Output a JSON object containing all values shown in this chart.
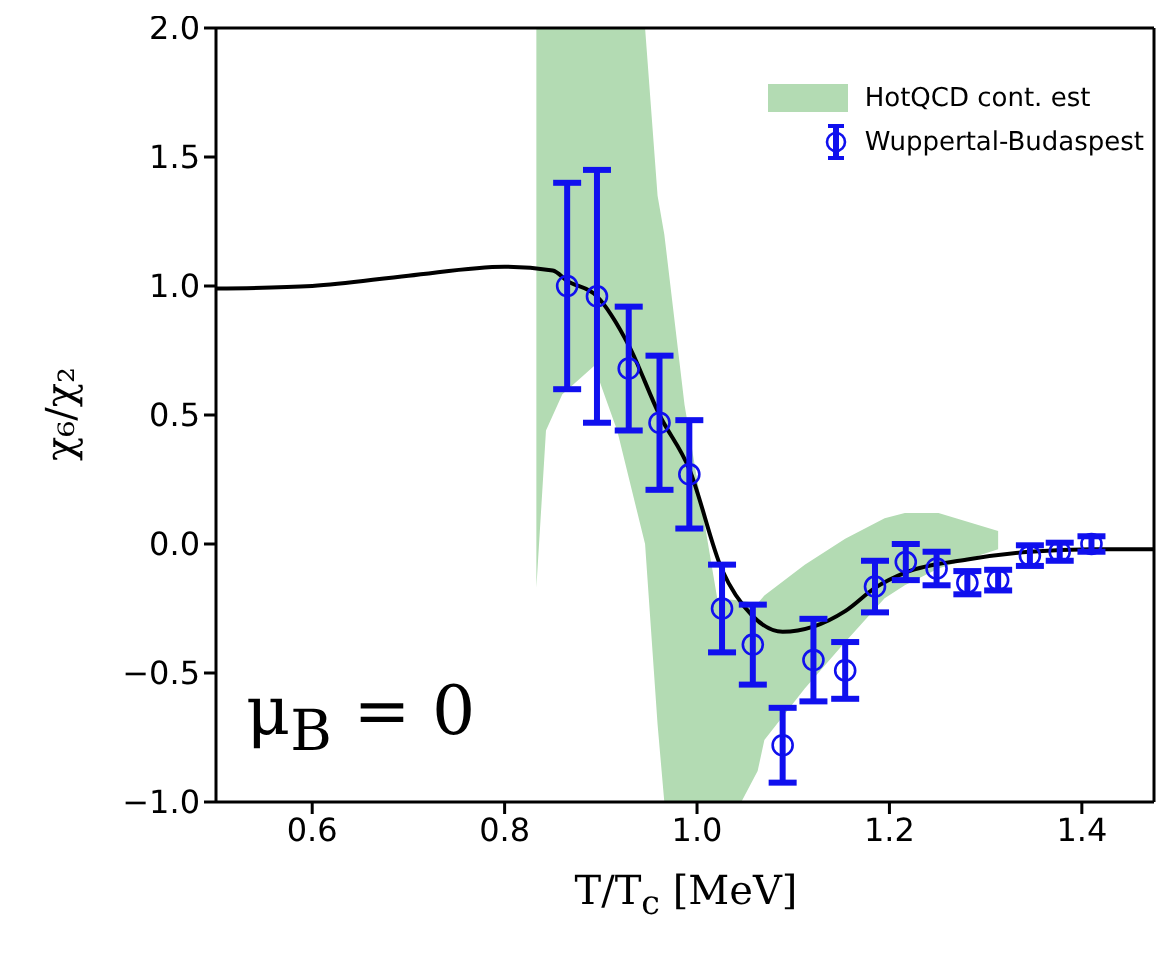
{
  "chart_data": {
    "type": "scatter",
    "xlabel": "T/T$_{c}$ [MeV]",
    "ylabel": "χ₆/χ₂",
    "xlim": [
      0.5,
      1.475
    ],
    "ylim": [
      -1.0,
      2.0
    ],
    "xticks": [
      {
        "value": 0.6,
        "label": "0.6"
      },
      {
        "value": 0.8,
        "label": "0.8"
      },
      {
        "value": 1.0,
        "label": "1.0"
      },
      {
        "value": 1.2,
        "label": "1.2"
      },
      {
        "value": 1.4,
        "label": "1.4"
      }
    ],
    "yticks": [
      {
        "value": -1.0,
        "label": "−1.0"
      },
      {
        "value": -0.5,
        "label": "−0.5"
      },
      {
        "value": 0.0,
        "label": "0.0"
      },
      {
        "value": 0.5,
        "label": "0.5"
      },
      {
        "value": 1.0,
        "label": "1.0"
      },
      {
        "value": 1.5,
        "label": "1.5"
      },
      {
        "value": 2.0,
        "label": "2.0"
      }
    ],
    "legend": "top right",
    "annotations": [
      "μ$_{B}$ = 0"
    ],
    "series": [
      {
        "name": "HotQCD cont. est",
        "type": "area",
        "color": "#b3dbb3",
        "x": [
          0.833,
          0.843,
          0.86,
          0.893,
          0.917,
          0.946,
          0.959,
          0.966,
          0.987,
          1.021,
          1.046,
          1.063,
          1.07,
          1.112,
          1.154,
          1.195,
          1.216,
          1.251,
          1.313
        ],
        "values": [
          null,
          null,
          null,
          null,
          null,
          null,
          null,
          null,
          null,
          null,
          null,
          null,
          null,
          null,
          null,
          null,
          null,
          null,
          null
        ],
        "lower": [
          -0.17,
          0.44,
          0.58,
          0.69,
          0.44,
          0.0,
          -0.7,
          -1.0,
          -1.0,
          -1.0,
          -1.0,
          -0.88,
          -0.76,
          -0.56,
          -0.38,
          -0.21,
          -0.16,
          -0.095,
          -0.02
        ],
        "upper": [
          2.0,
          2.0,
          2.0,
          2.0,
          2.0,
          2.0,
          1.35,
          1.2,
          0.54,
          -0.21,
          -0.22,
          -0.23,
          -0.2,
          -0.08,
          0.02,
          0.1,
          0.12,
          0.12,
          0.05
        ]
      },
      {
        "type": "line",
        "color": "#000000",
        "marker": "none",
        "x": [
          0.5,
          0.6,
          0.7,
          0.8,
          0.85,
          0.865,
          0.896,
          0.929,
          0.961,
          0.992,
          1.026,
          1.058,
          1.089,
          1.121,
          1.154,
          1.185,
          1.217,
          1.281,
          1.346,
          1.41,
          1.475
        ],
        "values": [
          0.99,
          1.0,
          1.04,
          1.075,
          1.06,
          1.02,
          0.96,
          0.77,
          0.5,
          0.29,
          -0.1,
          -0.28,
          -0.34,
          -0.32,
          -0.26,
          -0.17,
          -0.11,
          -0.06,
          -0.03,
          -0.02,
          -0.02
        ]
      },
      {
        "name": "Wuppertal-Budaspest",
        "color": "#1010ee",
        "marker": "circle",
        "x": [
          0.865,
          0.896,
          0.929,
          0.961,
          0.992,
          1.026,
          1.058,
          1.089,
          1.121,
          1.154,
          1.185,
          1.217,
          1.249,
          1.281,
          1.313,
          1.346,
          1.377,
          1.41
        ],
        "values": [
          1.0,
          0.96,
          0.68,
          0.47,
          0.27,
          -0.25,
          -0.39,
          -0.78,
          -0.45,
          -0.49,
          -0.165,
          -0.07,
          -0.095,
          -0.15,
          -0.14,
          -0.045,
          -0.03,
          0.0
        ],
        "errors": [
          0.4,
          0.49,
          0.24,
          0.26,
          0.21,
          0.17,
          0.155,
          0.145,
          0.16,
          0.11,
          0.1,
          0.07,
          0.065,
          0.045,
          0.04,
          0.04,
          0.035,
          0.03
        ]
      }
    ]
  }
}
